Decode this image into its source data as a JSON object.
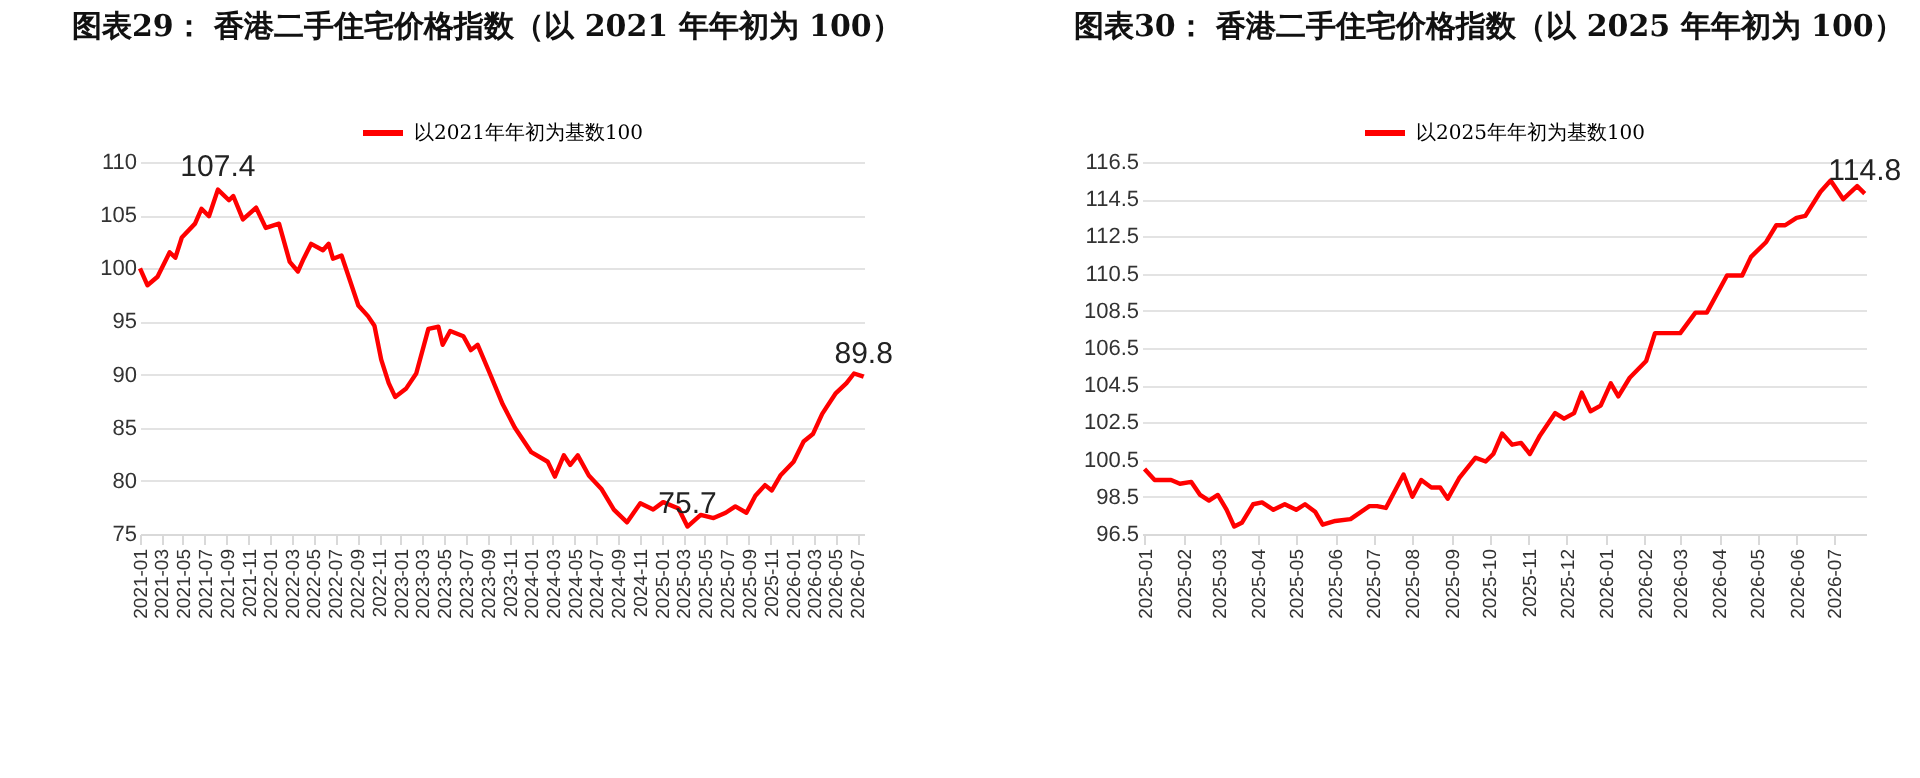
{
  "chart_data": [
    {
      "type": "line",
      "title": "图表29：  香港二手住宅价格指数（以 2021 年年初为 100）",
      "legend": "top",
      "grid": "y",
      "line_style": "solid",
      "marker": "none",
      "xlim": [
        "2021-01-01",
        "2026-07-20"
      ],
      "ylim": [
        75,
        110
      ],
      "yticks": [
        75,
        80,
        85,
        90,
        95,
        100,
        105,
        110
      ],
      "xticks": [
        "2021-01",
        "2021-03",
        "2021-05",
        "2021-07",
        "2021-09",
        "2021-11",
        "2022-01",
        "2022-03",
        "2022-05",
        "2022-07",
        "2022-09",
        "2022-11",
        "2023-01",
        "2023-03",
        "2023-05",
        "2023-07",
        "2023-09",
        "2023-11",
        "2024-01",
        "2024-03",
        "2024-05",
        "2024-07",
        "2024-09",
        "2024-11",
        "2025-01",
        "2025-03",
        "2025-05",
        "2025-07",
        "2025-09",
        "2025-11",
        "2026-01",
        "2026-03",
        "2026-05",
        "2026-07"
      ],
      "annotations": [
        {
          "text": "107.4",
          "x": "2021-08-07",
          "y": 107.4
        },
        {
          "text": "75.7",
          "x": "2025-03-13",
          "y": 75.7
        },
        {
          "text": "89.8",
          "x": "2026-07-19",
          "y": 89.8
        }
      ],
      "series": [
        {
          "name": "以2021年年初为基数100",
          "color": "#ff0000",
          "x": [
            "2021-01-01",
            "2021-01-22",
            "2021-02-19",
            "2021-03-25",
            "2021-04-10",
            "2021-04-28",
            "2021-06-04",
            "2021-06-22",
            "2021-07-13",
            "2021-08-07",
            "2021-09-07",
            "2021-09-19",
            "2021-10-16",
            "2021-11-22",
            "2021-12-19",
            "2022-01-25",
            "2022-02-24",
            "2022-03-19",
            "2022-04-04",
            "2022-04-25",
            "2022-05-28",
            "2022-06-13",
            "2022-06-25",
            "2022-07-19",
            "2022-09-04",
            "2022-10-01",
            "2022-10-19",
            "2022-11-07",
            "2022-11-28",
            "2022-12-16",
            "2023-01-16",
            "2023-02-13",
            "2023-03-19",
            "2023-04-16",
            "2023-04-28",
            "2023-05-19",
            "2023-06-25",
            "2023-07-16",
            "2023-08-04",
            "2023-09-07",
            "2023-10-13",
            "2023-11-16",
            "2024-01-01",
            "2024-02-16",
            "2024-03-07",
            "2024-04-01",
            "2024-04-19",
            "2024-05-10",
            "2024-06-10",
            "2024-07-16",
            "2024-08-19",
            "2024-09-25",
            "2024-11-01",
            "2024-12-07",
            "2025-01-04",
            "2025-02-16",
            "2025-03-13",
            "2025-04-19",
            "2025-05-25",
            "2025-06-28",
            "2025-07-25",
            "2025-08-25",
            "2025-09-19",
            "2025-10-16",
            "2025-11-04",
            "2025-11-28",
            "2026-01-04",
            "2026-02-01",
            "2026-02-27",
            "2026-03-25",
            "2026-05-01",
            "2026-06-01",
            "2026-06-22",
            "2026-07-19"
          ],
          "values": [
            100.0,
            98.4,
            99.2,
            101.5,
            101.0,
            102.9,
            104.2,
            105.6,
            104.9,
            107.4,
            106.4,
            106.8,
            104.6,
            105.7,
            103.8,
            104.2,
            100.6,
            99.7,
            100.9,
            102.3,
            101.7,
            102.3,
            100.9,
            101.2,
            96.5,
            95.5,
            94.6,
            91.4,
            89.2,
            87.9,
            88.7,
            90.1,
            94.3,
            94.5,
            92.8,
            94.1,
            93.6,
            92.3,
            92.8,
            90.1,
            87.2,
            85.0,
            82.7,
            81.8,
            80.4,
            82.4,
            81.5,
            82.4,
            80.5,
            79.2,
            77.3,
            76.1,
            77.9,
            77.3,
            78.0,
            77.4,
            75.7,
            76.8,
            76.5,
            77.0,
            77.6,
            77.0,
            78.6,
            79.6,
            79.1,
            80.5,
            81.8,
            83.7,
            84.4,
            86.3,
            88.2,
            89.2,
            90.1,
            89.8
          ]
        }
      ]
    },
    {
      "type": "line",
      "title": "图表30：  香港二手住宅价格指数（以 2025 年年初为 100）",
      "legend": "top",
      "grid": "y",
      "line_style": "solid",
      "marker": "none",
      "xlim": [
        "2024-12-30",
        "2026-07-26"
      ],
      "ylim": [
        96.5,
        116.5
      ],
      "yticks": [
        96.5,
        98.5,
        100.5,
        102.5,
        104.5,
        106.5,
        108.5,
        110.5,
        112.5,
        114.5,
        116.5
      ],
      "xticks": [
        "2025-01",
        "2025-02",
        "2025-03",
        "2025-04",
        "2025-05",
        "2025-06",
        "2025-07",
        "2025-08",
        "2025-09",
        "2025-10",
        "2025-11",
        "2025-12",
        "2026-01",
        "2026-02",
        "2026-03",
        "2026-04",
        "2026-05",
        "2026-06",
        "2026-07"
      ],
      "annotations": [
        {
          "text": "114.8",
          "x": "2026-07-25",
          "y": 114.8
        }
      ],
      "series": [
        {
          "name": "以2025年年初为基数100",
          "color": "#ff0000",
          "x": [
            "2025-01-01",
            "2025-01-09",
            "2025-01-22",
            "2025-01-29",
            "2025-02-07",
            "2025-02-14",
            "2025-02-21",
            "2025-02-28",
            "2025-03-07",
            "2025-03-13",
            "2025-03-19",
            "2025-03-28",
            "2025-04-04",
            "2025-04-13",
            "2025-04-22",
            "2025-05-01",
            "2025-05-08",
            "2025-05-16",
            "2025-05-22",
            "2025-06-01",
            "2025-06-13",
            "2025-06-28",
            "2025-07-04",
            "2025-07-11",
            "2025-07-25",
            "2025-08-01",
            "2025-08-08",
            "2025-08-16",
            "2025-08-23",
            "2025-08-29",
            "2025-09-07",
            "2025-09-20",
            "2025-09-28",
            "2025-10-04",
            "2025-10-11",
            "2025-10-19",
            "2025-10-26",
            "2025-11-02",
            "2025-11-10",
            "2025-11-22",
            "2025-11-29",
            "2025-12-07",
            "2025-12-13",
            "2025-12-20",
            "2025-12-28",
            "2026-01-05",
            "2026-01-11",
            "2026-01-20",
            "2026-02-02",
            "2026-02-09",
            "2026-03-01",
            "2026-03-13",
            "2026-03-22",
            "2026-04-07",
            "2026-04-19",
            "2026-04-26",
            "2026-05-08",
            "2026-05-16",
            "2026-05-23",
            "2026-06-01",
            "2026-06-08",
            "2026-06-20",
            "2026-06-28",
            "2026-07-08",
            "2026-07-19",
            "2026-07-25"
          ],
          "values": [
            100.0,
            99.4,
            99.4,
            99.2,
            99.3,
            98.6,
            98.3,
            98.6,
            97.8,
            96.9,
            97.1,
            98.1,
            98.2,
            97.8,
            98.1,
            97.8,
            98.1,
            97.7,
            97.0,
            97.2,
            97.3,
            98.0,
            98.0,
            97.9,
            99.7,
            98.5,
            99.4,
            99.0,
            99.0,
            98.4,
            99.5,
            100.6,
            100.4,
            100.8,
            101.9,
            101.3,
            101.4,
            100.8,
            101.8,
            103.0,
            102.7,
            103.0,
            104.1,
            103.1,
            103.4,
            104.6,
            103.9,
            104.9,
            105.8,
            107.3,
            107.3,
            108.4,
            108.4,
            110.4,
            110.4,
            111.4,
            112.2,
            113.1,
            113.1,
            113.5,
            113.6,
            114.9,
            115.5,
            114.5,
            115.2,
            114.8
          ]
        }
      ]
    }
  ]
}
